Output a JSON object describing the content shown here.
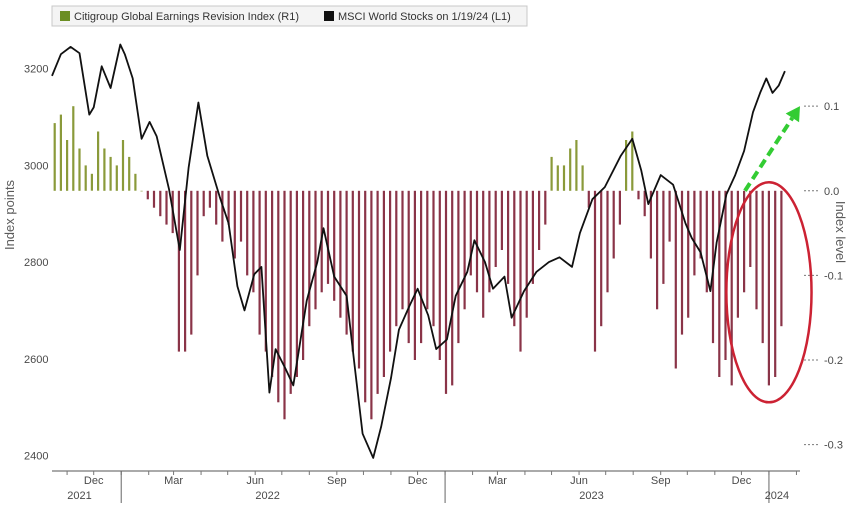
{
  "chart_data": {
    "type": "bar+line",
    "legend": {
      "placement": "top-left",
      "entries": [
        {
          "label": "Citigroup Global Earnings Revision Index (R1)",
          "color": "#6b8e23"
        },
        {
          "label": "MSCI World Stocks on 1/19/24 (L1)",
          "color": "#111111"
        }
      ]
    },
    "left_axis": {
      "label": "Index points",
      "ticks": [
        "3200",
        "3000",
        "2800",
        "2600",
        "2400"
      ],
      "range": [
        2370,
        3280
      ]
    },
    "right_axis": {
      "label": "Index level",
      "ticks": [
        "0.1",
        "0.0",
        "-0.1",
        "-0.2",
        "-0.3"
      ],
      "range": [
        -0.33,
        0.19
      ]
    },
    "x_axis": {
      "month_labels": [
        {
          "label": "Dec",
          "date": "2021-12-01"
        },
        {
          "label": "Mar",
          "date": "2022-03-01"
        },
        {
          "label": "Jun",
          "date": "2022-06-01"
        },
        {
          "label": "Sep",
          "date": "2022-09-01"
        },
        {
          "label": "Dec",
          "date": "2022-12-01"
        },
        {
          "label": "Mar",
          "date": "2023-03-01"
        },
        {
          "label": "Jun",
          "date": "2023-06-01"
        },
        {
          "label": "Sep",
          "date": "2023-09-01"
        },
        {
          "label": "Dec",
          "date": "2023-12-01"
        }
      ],
      "year_labels": [
        {
          "label": "2021",
          "date": "2021-11-15"
        },
        {
          "label": "2022",
          "date": "2022-06-15"
        },
        {
          "label": "2023",
          "date": "2023-06-15"
        },
        {
          "label": "2024",
          "date": "2024-01-10"
        }
      ],
      "range": [
        "2021-10-15",
        "2024-02-05"
      ]
    },
    "revision_index": [
      [
        "2021-10-18",
        0.08
      ],
      [
        "2021-10-25",
        0.09
      ],
      [
        "2021-11-01",
        0.06
      ],
      [
        "2021-11-08",
        0.1
      ],
      [
        "2021-11-15",
        0.05
      ],
      [
        "2021-11-22",
        0.03
      ],
      [
        "2021-11-29",
        0.02
      ],
      [
        "2021-12-06",
        0.07
      ],
      [
        "2021-12-13",
        0.05
      ],
      [
        "2021-12-20",
        0.04
      ],
      [
        "2021-12-27",
        0.03
      ],
      [
        "2022-01-03",
        0.06
      ],
      [
        "2022-01-10",
        0.04
      ],
      [
        "2022-01-17",
        0.02
      ],
      [
        "2022-01-24",
        0.0
      ],
      [
        "2022-01-31",
        -0.01
      ],
      [
        "2022-02-07",
        -0.02
      ],
      [
        "2022-02-14",
        -0.03
      ],
      [
        "2022-02-21",
        -0.04
      ],
      [
        "2022-02-28",
        -0.05
      ],
      [
        "2022-03-07",
        -0.19
      ],
      [
        "2022-03-14",
        -0.19
      ],
      [
        "2022-03-21",
        -0.17
      ],
      [
        "2022-03-28",
        -0.1
      ],
      [
        "2022-04-04",
        -0.03
      ],
      [
        "2022-04-11",
        -0.02
      ],
      [
        "2022-04-18",
        -0.04
      ],
      [
        "2022-04-25",
        -0.06
      ],
      [
        "2022-05-02",
        -0.04
      ],
      [
        "2022-05-09",
        -0.08
      ],
      [
        "2022-05-16",
        -0.06
      ],
      [
        "2022-05-23",
        -0.1
      ],
      [
        "2022-05-30",
        -0.12
      ],
      [
        "2022-06-06",
        -0.17
      ],
      [
        "2022-06-13",
        -0.19
      ],
      [
        "2022-06-20",
        -0.22
      ],
      [
        "2022-06-27",
        -0.25
      ],
      [
        "2022-07-04",
        -0.27
      ],
      [
        "2022-07-11",
        -0.24
      ],
      [
        "2022-07-18",
        -0.22
      ],
      [
        "2022-07-25",
        -0.2
      ],
      [
        "2022-08-01",
        -0.16
      ],
      [
        "2022-08-08",
        -0.14
      ],
      [
        "2022-08-15",
        -0.12
      ],
      [
        "2022-08-22",
        -0.11
      ],
      [
        "2022-08-29",
        -0.13
      ],
      [
        "2022-09-05",
        -0.15
      ],
      [
        "2022-09-12",
        -0.17
      ],
      [
        "2022-09-19",
        -0.19
      ],
      [
        "2022-09-26",
        -0.21
      ],
      [
        "2022-10-03",
        -0.25
      ],
      [
        "2022-10-10",
        -0.27
      ],
      [
        "2022-10-17",
        -0.24
      ],
      [
        "2022-10-24",
        -0.22
      ],
      [
        "2022-10-31",
        -0.19
      ],
      [
        "2022-11-07",
        -0.16
      ],
      [
        "2022-11-14",
        -0.14
      ],
      [
        "2022-11-21",
        -0.18
      ],
      [
        "2022-11-28",
        -0.2
      ],
      [
        "2022-12-05",
        -0.18
      ],
      [
        "2022-12-12",
        -0.14
      ],
      [
        "2022-12-19",
        -0.16
      ],
      [
        "2022-12-26",
        -0.2
      ],
      [
        "2023-01-02",
        -0.24
      ],
      [
        "2023-01-09",
        -0.23
      ],
      [
        "2023-01-16",
        -0.18
      ],
      [
        "2023-01-23",
        -0.14
      ],
      [
        "2023-01-30",
        -0.1
      ],
      [
        "2023-02-06",
        -0.12
      ],
      [
        "2023-02-13",
        -0.15
      ],
      [
        "2023-02-20",
        -0.12
      ],
      [
        "2023-02-27",
        -0.09
      ],
      [
        "2023-03-06",
        -0.07
      ],
      [
        "2023-03-13",
        -0.11
      ],
      [
        "2023-03-20",
        -0.16
      ],
      [
        "2023-03-27",
        -0.19
      ],
      [
        "2023-04-03",
        -0.15
      ],
      [
        "2023-04-10",
        -0.11
      ],
      [
        "2023-04-17",
        -0.07
      ],
      [
        "2023-04-24",
        -0.04
      ],
      [
        "2023-05-01",
        0.04
      ],
      [
        "2023-05-08",
        0.03
      ],
      [
        "2023-05-15",
        0.03
      ],
      [
        "2023-05-22",
        0.05
      ],
      [
        "2023-05-29",
        0.06
      ],
      [
        "2023-06-05",
        0.03
      ],
      [
        "2023-06-12",
        -0.02
      ],
      [
        "2023-06-19",
        -0.19
      ],
      [
        "2023-06-26",
        -0.16
      ],
      [
        "2023-07-03",
        -0.12
      ],
      [
        "2023-07-10",
        -0.08
      ],
      [
        "2023-07-17",
        -0.04
      ],
      [
        "2023-07-24",
        0.06
      ],
      [
        "2023-07-31",
        0.07
      ],
      [
        "2023-08-07",
        -0.01
      ],
      [
        "2023-08-14",
        -0.03
      ],
      [
        "2023-08-21",
        -0.08
      ],
      [
        "2023-08-28",
        -0.14
      ],
      [
        "2023-09-04",
        -0.11
      ],
      [
        "2023-09-11",
        -0.06
      ],
      [
        "2023-09-18",
        -0.21
      ],
      [
        "2023-09-25",
        -0.17
      ],
      [
        "2023-10-02",
        -0.15
      ],
      [
        "2023-10-09",
        -0.1
      ],
      [
        "2023-10-16",
        -0.08
      ],
      [
        "2023-10-23",
        -0.12
      ],
      [
        "2023-10-30",
        -0.18
      ],
      [
        "2023-11-06",
        -0.22
      ],
      [
        "2023-11-13",
        -0.2
      ],
      [
        "2023-11-20",
        -0.23
      ],
      [
        "2023-11-27",
        -0.15
      ],
      [
        "2023-12-04",
        -0.12
      ],
      [
        "2023-12-11",
        -0.09
      ],
      [
        "2023-12-18",
        -0.14
      ],
      [
        "2023-12-25",
        -0.18
      ],
      [
        "2024-01-01",
        -0.23
      ],
      [
        "2024-01-08",
        -0.22
      ],
      [
        "2024-01-15",
        -0.16
      ]
    ],
    "msci_world": [
      [
        "2021-10-15",
        3185
      ],
      [
        "2021-10-25",
        3230
      ],
      [
        "2021-11-05",
        3245
      ],
      [
        "2021-11-15",
        3232
      ],
      [
        "2021-11-26",
        3105
      ],
      [
        "2021-12-01",
        3120
      ],
      [
        "2021-12-10",
        3205
      ],
      [
        "2021-12-20",
        3160
      ],
      [
        "2021-12-31",
        3250
      ],
      [
        "2022-01-05",
        3230
      ],
      [
        "2022-01-14",
        3180
      ],
      [
        "2022-01-24",
        3055
      ],
      [
        "2022-02-02",
        3090
      ],
      [
        "2022-02-10",
        3060
      ],
      [
        "2022-02-24",
        2950
      ],
      [
        "2022-03-08",
        2825
      ],
      [
        "2022-03-18",
        2995
      ],
      [
        "2022-03-29",
        3130
      ],
      [
        "2022-04-08",
        3020
      ],
      [
        "2022-04-22",
        2935
      ],
      [
        "2022-05-02",
        2880
      ],
      [
        "2022-05-12",
        2750
      ],
      [
        "2022-05-20",
        2700
      ],
      [
        "2022-05-31",
        2775
      ],
      [
        "2022-06-08",
        2790
      ],
      [
        "2022-06-17",
        2530
      ],
      [
        "2022-06-24",
        2620
      ],
      [
        "2022-07-05",
        2580
      ],
      [
        "2022-07-14",
        2545
      ],
      [
        "2022-07-29",
        2720
      ],
      [
        "2022-08-10",
        2800
      ],
      [
        "2022-08-17",
        2870
      ],
      [
        "2022-08-29",
        2770
      ],
      [
        "2022-09-12",
        2730
      ],
      [
        "2022-09-22",
        2570
      ],
      [
        "2022-09-30",
        2445
      ],
      [
        "2022-10-12",
        2395
      ],
      [
        "2022-10-21",
        2460
      ],
      [
        "2022-11-01",
        2560
      ],
      [
        "2022-11-10",
        2660
      ],
      [
        "2022-11-22",
        2710
      ],
      [
        "2022-12-01",
        2745
      ],
      [
        "2022-12-13",
        2690
      ],
      [
        "2022-12-22",
        2620
      ],
      [
        "2023-01-03",
        2640
      ],
      [
        "2023-01-13",
        2730
      ],
      [
        "2023-01-26",
        2780
      ],
      [
        "2023-02-03",
        2845
      ],
      [
        "2023-02-15",
        2800
      ],
      [
        "2023-02-24",
        2745
      ],
      [
        "2023-03-09",
        2770
      ],
      [
        "2023-03-17",
        2685
      ],
      [
        "2023-03-31",
        2740
      ],
      [
        "2023-04-14",
        2780
      ],
      [
        "2023-04-28",
        2800
      ],
      [
        "2023-05-10",
        2810
      ],
      [
        "2023-05-24",
        2790
      ],
      [
        "2023-06-02",
        2860
      ],
      [
        "2023-06-16",
        2930
      ],
      [
        "2023-06-30",
        2955
      ],
      [
        "2023-07-18",
        3020
      ],
      [
        "2023-07-31",
        3055
      ],
      [
        "2023-08-10",
        2990
      ],
      [
        "2023-08-18",
        2920
      ],
      [
        "2023-09-01",
        2980
      ],
      [
        "2023-09-15",
        2960
      ],
      [
        "2023-09-29",
        2880
      ],
      [
        "2023-10-06",
        2850
      ],
      [
        "2023-10-16",
        2820
      ],
      [
        "2023-10-27",
        2740
      ],
      [
        "2023-11-03",
        2840
      ],
      [
        "2023-11-14",
        2940
      ],
      [
        "2023-11-24",
        2980
      ],
      [
        "2023-12-04",
        3030
      ],
      [
        "2023-12-14",
        3110
      ],
      [
        "2023-12-22",
        3150
      ],
      [
        "2023-12-29",
        3180
      ],
      [
        "2024-01-05",
        3150
      ],
      [
        "2024-01-12",
        3165
      ],
      [
        "2024-01-19",
        3195
      ]
    ],
    "annotations": [
      {
        "type": "dashed-arrow",
        "color": "#33cc33",
        "from": [
          "2023-12-05",
          0.0
        ],
        "to": [
          "2024-02-05",
          0.1
        ]
      },
      {
        "type": "ellipse",
        "color": "#cc2233",
        "center": [
          "2024-01-01",
          -0.12
        ],
        "radius_days": 48,
        "radius_value": 0.13
      }
    ]
  }
}
